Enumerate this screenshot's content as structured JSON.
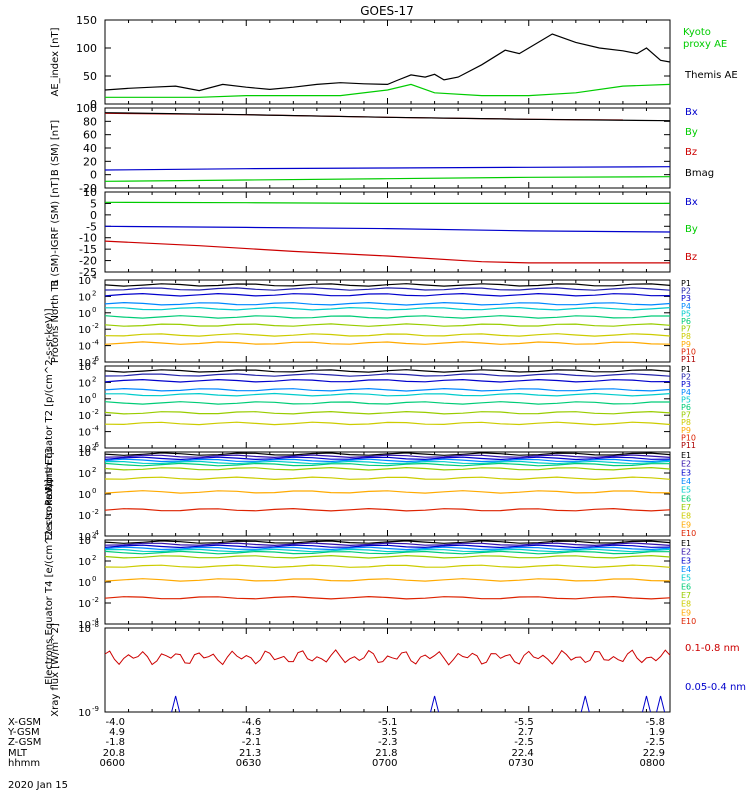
{
  "title": "GOES-17",
  "date_label": "2020 Jan 15",
  "colors": {
    "black": "#000000",
    "green": "#00cc00",
    "blue": "#0000cc",
    "red": "#cc0000",
    "p_colors": [
      "#000000",
      "#2222aa",
      "#0000cc",
      "#0088ff",
      "#00cccc",
      "#00cc77",
      "#99cc00",
      "#cccc00",
      "#ffaa00",
      "#dd2200",
      "#aa0000"
    ],
    "e_colors": [
      "#000000",
      "#3311aa",
      "#0000cc",
      "#0088ff",
      "#00cccc",
      "#00cc77",
      "#99cc00",
      "#cccc00",
      "#ffaa00",
      "#dd2200",
      "#aa0000"
    ]
  },
  "ephemeris": {
    "row_labels": [
      "X-GSM",
      "Y-GSM",
      "Z-GSM",
      "MLT",
      "hhmm"
    ],
    "columns": [
      {
        "values": [
          "-4.0",
          "4.9",
          "-1.8",
          "20.8",
          "0600"
        ]
      },
      {
        "values": [
          "-4.6",
          "4.3",
          "-2.1",
          "21.3",
          "0630"
        ]
      },
      {
        "values": [
          "-5.1",
          "3.5",
          "-2.3",
          "21.8",
          "0700"
        ]
      },
      {
        "values": [
          "-5.5",
          "2.7",
          "-2.5",
          "22.4",
          "0730"
        ]
      },
      {
        "values": [
          "-5.8",
          "1.9",
          "-2.5",
          "22.9",
          "0800"
        ]
      }
    ]
  },
  "chart_data": [
    {
      "type": "line",
      "title": "GOES-17",
      "ylabel": "AE_index [nT]",
      "x_range_hhmm": [
        "0600",
        "0800"
      ],
      "ylim": [
        0,
        150
      ],
      "yticks": [
        "0",
        "50",
        "100",
        "150"
      ],
      "legend": [
        "Kyoto",
        "proxy AE",
        "Themis AE"
      ],
      "series": [
        {
          "name": "Kyoto proxy AE",
          "color_key": "green",
          "x_min": [
            0,
            10,
            20,
            30,
            40,
            50,
            60,
            65,
            70,
            80,
            90,
            100,
            110,
            120
          ],
          "values": [
            12,
            12,
            12,
            15,
            15,
            15,
            25,
            35,
            20,
            15,
            15,
            20,
            32,
            35
          ]
        },
        {
          "name": "Themis AE",
          "color_key": "black",
          "x_min": [
            0,
            5,
            10,
            15,
            20,
            25,
            30,
            35,
            40,
            45,
            50,
            55,
            60,
            62,
            65,
            68,
            70,
            72,
            75,
            80,
            85,
            88,
            90,
            95,
            100,
            105,
            110,
            113,
            115,
            118,
            120
          ],
          "values": [
            25,
            28,
            30,
            32,
            24,
            35,
            30,
            26,
            30,
            35,
            38,
            36,
            35,
            42,
            52,
            48,
            53,
            43,
            48,
            70,
            96,
            90,
            100,
            125,
            110,
            100,
            95,
            90,
            100,
            78,
            75
          ]
        }
      ]
    },
    {
      "type": "line",
      "ylabel": "B (SM) [nT]",
      "ylim": [
        -20,
        100
      ],
      "yticks": [
        "-20",
        "0",
        "20",
        "40",
        "60",
        "80",
        "100"
      ],
      "legend": [
        "Bx",
        "By",
        "Bz",
        "Bmag"
      ],
      "series": [
        {
          "name": "Bx",
          "color_key": "blue",
          "x_min": [
            0,
            30,
            60,
            90,
            120
          ],
          "values": [
            7,
            9,
            10,
            11,
            12
          ]
        },
        {
          "name": "By",
          "color_key": "green",
          "x_min": [
            0,
            30,
            60,
            90,
            120
          ],
          "values": [
            -10,
            -8,
            -6,
            -4,
            -3
          ]
        },
        {
          "name": "Bz",
          "color_key": "red",
          "x_min": [
            0,
            30,
            60,
            90,
            110
          ],
          "values": [
            92,
            90,
            86,
            83,
            82
          ]
        },
        {
          "name": "Bmag",
          "color_key": "black",
          "x_min": [
            0,
            30,
            60,
            90,
            120
          ],
          "values": [
            93,
            90,
            86,
            83,
            81
          ]
        }
      ]
    },
    {
      "type": "line",
      "ylabel": "B (SM)-IGRF (SM) [nT]",
      "ylim": [
        -25,
        10
      ],
      "yticks": [
        "10",
        "5",
        "0",
        "-5",
        "-10",
        "-15",
        "-20",
        "-25"
      ],
      "legend": [
        "Bx",
        "By",
        "Bz"
      ],
      "series": [
        {
          "name": "Bx",
          "color_key": "blue",
          "x_min": [
            0,
            30,
            60,
            90,
            120
          ],
          "values": [
            -5,
            -5.5,
            -6,
            -7,
            -7.5
          ]
        },
        {
          "name": "By",
          "color_key": "green",
          "x_min": [
            0,
            30,
            60,
            90,
            120
          ],
          "values": [
            5.5,
            5.3,
            5,
            5,
            5
          ]
        },
        {
          "name": "Bz",
          "color_key": "red",
          "x_min": [
            0,
            20,
            40,
            60,
            80,
            90,
            120
          ],
          "values": [
            -11.5,
            -13.5,
            -16,
            -18,
            -20.5,
            -21,
            -21
          ]
        }
      ]
    },
    {
      "type": "line",
      "ylabel": "Protons North T1",
      "yscale": "log",
      "ylim_exp": [
        -6,
        4
      ],
      "yticks": [
        "10^4",
        "10^2",
        "10^0",
        "10^-2",
        "10^-4",
        "10^-6"
      ],
      "legend": [
        "P1",
        "P2",
        "P3",
        "P4",
        "P5",
        "P6",
        "P7",
        "P8",
        "P9",
        "P10",
        "P11"
      ],
      "levels_exp": [
        3.4,
        2.9,
        2.2,
        1.1,
        0.5,
        -0.5,
        -1.5,
        -2.7,
        -3.7
      ],
      "gaps": [
        [
          35,
          60
        ],
        [
          75,
          88
        ],
        [
          93,
          120
        ]
      ]
    },
    {
      "type": "line",
      "ylabel": "Protons Equator T2 [p/(cm^2-s-sr-keV)]",
      "yscale": "log",
      "ylim_exp": [
        -6,
        4
      ],
      "yticks": [
        "10^4",
        "10^2",
        "10^0",
        "10^-2",
        "10^-4",
        "10^-6"
      ],
      "legend": [
        "P1",
        "P2",
        "P3",
        "P4",
        "P5",
        "P6",
        "P7",
        "P8",
        "P9",
        "P10",
        "P11"
      ],
      "levels_exp": [
        3.4,
        2.9,
        2.2,
        1.1,
        0.5,
        -0.5,
        -1.7,
        -3.0
      ],
      "gaps": [
        [
          0,
          70
        ],
        [
          75,
          120
        ]
      ]
    },
    {
      "type": "line",
      "ylabel": "Electrons North T3",
      "yscale": "log",
      "ylim_exp": [
        -4,
        4
      ],
      "yticks": [
        "10^4",
        "10^2",
        "10^0",
        "10^-2",
        "10^-4"
      ],
      "legend": [
        "E1",
        "E2",
        "E3",
        "E4",
        "E5",
        "E6",
        "E7",
        "E8",
        "E9",
        "E10"
      ],
      "levels_exp": [
        3.8,
        3.6,
        3.4,
        3.2,
        3.0,
        2.8,
        2.4,
        1.5,
        0.2,
        -1.5
      ]
    },
    {
      "type": "line",
      "ylabel": "Electrons Equator T4 [e/(cm^2-s-sr-keV)]",
      "yscale": "log",
      "ylim_exp": [
        -4,
        4
      ],
      "yticks": [
        "10^4",
        "10^2",
        "10^0",
        "10^-2",
        "10^-4"
      ],
      "legend": [
        "E1",
        "E2",
        "E3",
        "E4",
        "E5",
        "E6",
        "E7",
        "E8",
        "E9",
        "E10"
      ],
      "levels_exp": [
        3.8,
        3.6,
        3.4,
        3.2,
        3.0,
        2.8,
        2.4,
        1.5,
        0.2,
        -1.5
      ]
    },
    {
      "type": "line",
      "ylabel": "Xray flux [W/m^2]",
      "yscale": "log",
      "ylim_exp": [
        -9,
        -8
      ],
      "yticks": [
        "10^-8",
        "10^-9"
      ],
      "legend": [
        "0.1-0.8 nm",
        "0.05-0.4 nm"
      ],
      "series": [
        {
          "name": "0.1-0.8 nm",
          "color_key": "red",
          "mean_exp": -8.35
        },
        {
          "name": "0.05-0.4 nm",
          "color_key": "blue",
          "spikes_min": [
            15,
            70,
            102,
            115,
            118
          ]
        }
      ]
    }
  ]
}
